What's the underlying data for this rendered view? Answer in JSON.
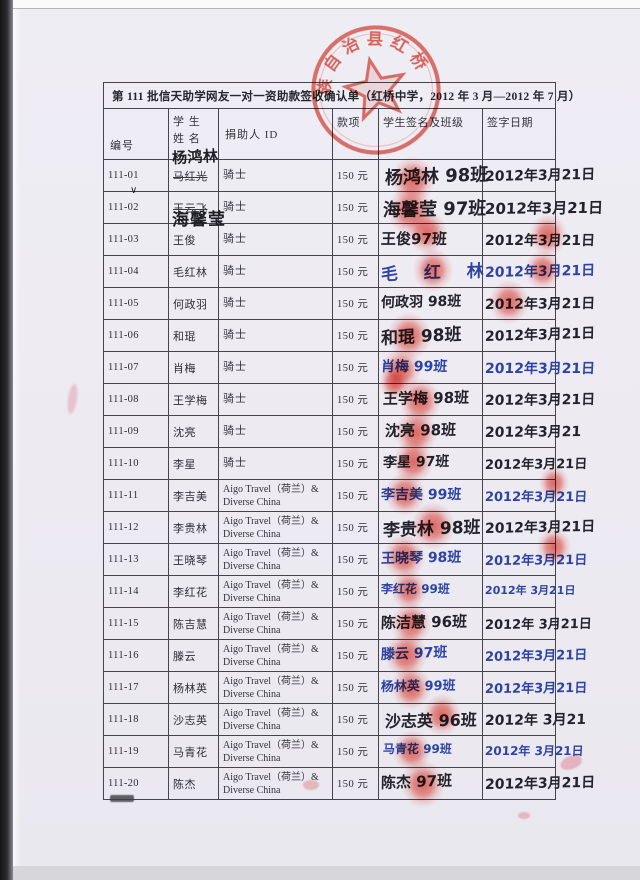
{
  "document": {
    "title": "第 111 批信天助学网友一对一资助款签收确认单（红桥中学，2012 年 3 月—2012 年 7 月）",
    "stamp": {
      "arc_text": "族自治县红桥",
      "color": "#dc4335",
      "star_shape": "five-pointed-star"
    },
    "colors": {
      "pen_black": "#23232c",
      "pen_blue": "#2c44a4",
      "stamp_red": "#dc4335",
      "paper": "#edeaf2"
    },
    "table": {
      "headers": {
        "id": "编号",
        "student_name": "学 生 姓 名",
        "donor_id": "捐助人 ID",
        "amount": "款项",
        "signature": "学生签名及班级",
        "sign_date": "签字日期"
      },
      "rows": [
        {
          "id": "111-01",
          "name": "马红光",
          "struck": true,
          "correction": "杨鸿林",
          "correction_pos": "above",
          "check": "∨",
          "donor": "骑士",
          "amount": "150 元",
          "sig": "杨鸿林 98班",
          "date": "2012年3月21日",
          "pen": "black"
        },
        {
          "id": "111-02",
          "name": "王云飞",
          "struck": true,
          "correction": "海馨莹",
          "correction_pos": "below",
          "donor": "骑士",
          "amount": "150 元",
          "sig": "海馨莹 97班",
          "date": "2012年3月21日",
          "pen": "black"
        },
        {
          "id": "111-03",
          "name": "王俊",
          "donor": "骑士",
          "amount": "150 元",
          "sig": "王俊97班",
          "date": "2012年3月21日",
          "pen": "black"
        },
        {
          "id": "111-04",
          "name": "毛红林",
          "donor": "骑士",
          "amount": "150 元",
          "sig": "毛 红 林",
          "date": "2012年3月21日",
          "pen": "blue"
        },
        {
          "id": "111-05",
          "name": "何政羽",
          "donor": "骑士",
          "amount": "150 元",
          "sig": "何政羽 98班",
          "date": "2012年3月21日",
          "pen": "black"
        },
        {
          "id": "111-06",
          "name": "和琨",
          "donor": "骑士",
          "amount": "150 元",
          "sig": "和琨 98班",
          "date": "2012年3月21日",
          "pen": "black"
        },
        {
          "id": "111-07",
          "name": "肖梅",
          "donor": "骑士",
          "amount": "150 元",
          "sig": "肖梅 99班",
          "date": "2012年3月21日",
          "pen": "blue"
        },
        {
          "id": "111-08",
          "name": "王学梅",
          "donor": "骑士",
          "amount": "150 元",
          "sig": "王学梅 98班",
          "date": "2012年3月21日",
          "pen": "black"
        },
        {
          "id": "111-09",
          "name": "沈亮",
          "donor": "骑士",
          "amount": "150 元",
          "sig": "沈亮 98班",
          "date": "2012年3月21",
          "pen": "black"
        },
        {
          "id": "111-10",
          "name": "李星",
          "donor": "骑士",
          "amount": "150 元",
          "sig": "李星 97班",
          "date": "2012年3月21日",
          "pen": "black"
        },
        {
          "id": "111-11",
          "name": "李吉美",
          "donor": "Aigo Travel（荷兰）& Diverse China",
          "amount": "150 元",
          "sig": "李吉美 99班",
          "date": "2012年3月21日",
          "pen": "blue"
        },
        {
          "id": "111-12",
          "name": "李贵林",
          "donor": "Aigo Travel（荷兰）& Diverse China",
          "amount": "150 元",
          "sig": "李贵林 98班",
          "date": "2012年3月21日",
          "pen": "black"
        },
        {
          "id": "111-13",
          "name": "王晓琴",
          "donor": "Aigo Travel（荷兰）& Diverse China",
          "amount": "150 元",
          "sig": "王晓琴 98班",
          "date": "2012年3月21日",
          "pen": "blue"
        },
        {
          "id": "111-14",
          "name": "李红花",
          "donor": "Aigo Travel（荷兰）& Diverse China",
          "amount": "150 元",
          "sig": "李红花 99班",
          "date": "2012年 3月21日",
          "pen": "blue"
        },
        {
          "id": "111-15",
          "name": "陈吉慧",
          "donor": "Aigo Travel（荷兰）& Diverse China",
          "amount": "150 元",
          "sig": "陈洁慧 96班",
          "date": "2012年 3月21日",
          "pen": "black"
        },
        {
          "id": "111-16",
          "name": "滕云",
          "donor": "Aigo Travel（荷兰）& Diverse China",
          "amount": "150 元",
          "sig": "滕云 97班",
          "date": "2012年3月21日",
          "pen": "blue"
        },
        {
          "id": "111-17",
          "name": "杨林英",
          "donor": "Aigo Travel（荷兰）& Diverse China",
          "amount": "150 元",
          "sig": "杨林英 99班",
          "date": "2012年3月21日",
          "pen": "blue"
        },
        {
          "id": "111-18",
          "name": "沙志英",
          "donor": "Aigo Travel（荷兰）& Diverse China",
          "amount": "150 元",
          "sig": "沙志英 96班",
          "date": "2012年 3月21",
          "pen": "black"
        },
        {
          "id": "111-19",
          "name": "马青花",
          "donor": "Aigo Travel（荷兰）& Diverse China",
          "amount": "150 元",
          "sig": "马青花 99班",
          "date": "2012年 3月21日",
          "pen": "blue"
        },
        {
          "id": "111-20",
          "name": "陈杰",
          "donor": "Aigo Travel（荷兰）& Diverse China",
          "amount": "150 元",
          "sig": "陈杰 97班",
          "date": "2012年3月21日",
          "pen": "black"
        }
      ]
    }
  }
}
